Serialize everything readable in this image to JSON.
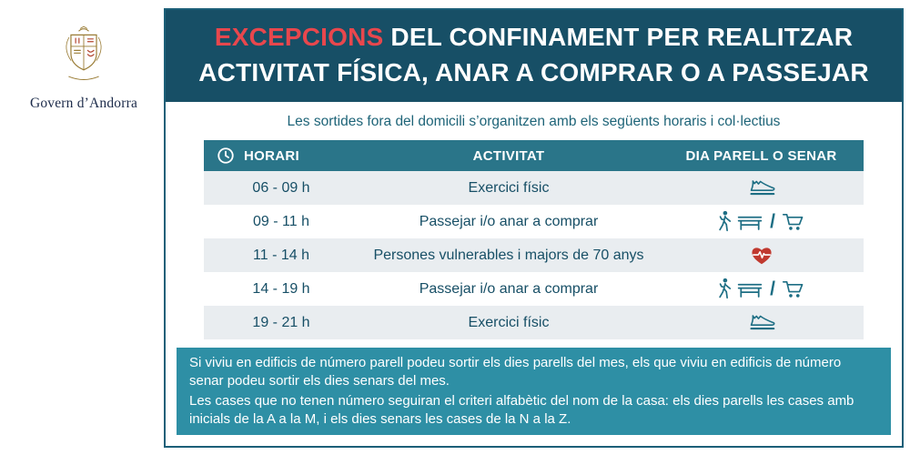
{
  "logo": {
    "org": "Govern d’Andorra"
  },
  "header": {
    "title_accent": "EXCEPCIONS",
    "title_rest": "DEL CONFINAMENT PER REALITZAR",
    "title_line2": "ACTIVITAT FÍSICA, ANAR A COMPRAR O A PASSEJAR"
  },
  "intro": "Les sortides fora del domicili s’organitzen amb els següents horaris i col·lectius",
  "table": {
    "header_time": "HORARI",
    "header_activity": "ACTIVITAT",
    "header_parity": "DIA PARELL O SENAR",
    "rows": [
      {
        "time": "06 - 09 h",
        "activity": "Exercici físic",
        "icons": [
          "sneaker"
        ]
      },
      {
        "time": "09 - 11 h",
        "activity": "Passejar i/o anar a comprar",
        "icons": [
          "walk",
          "bench",
          "slash",
          "cart"
        ]
      },
      {
        "time": "11 - 14 h",
        "activity": "Persones vulnerables i majors de 70 anys",
        "icons": [
          "heart-pulse"
        ]
      },
      {
        "time": "14 - 19 h",
        "activity": "Passejar i/o anar a comprar",
        "icons": [
          "walk",
          "bench",
          "slash",
          "cart"
        ]
      },
      {
        "time": "19 - 21 h",
        "activity": "Exercici físic",
        "icons": [
          "sneaker"
        ]
      }
    ]
  },
  "footer": {
    "line1": "Si viviu en edificis de número parell podeu sortir els dies parells del mes, els que viviu en edificis de número senar podeu sortir els dies senars del mes.",
    "line2": "Les cases que no tenen número seguiran el criteri alfabètic del nom de la casa: els dies parells les cases amb inicials de la A a la M, i els dies senars les cases de la N a la Z."
  },
  "icons": {
    "clock": "clock-icon",
    "sneaker": "sneaker-icon",
    "walk": "walking-person-icon",
    "bench": "bench-icon",
    "cart": "shopping-cart-icon",
    "heart-pulse": "heart-pulse-icon",
    "slash": "slash-separator"
  },
  "colors": {
    "header_bg": "#174f66",
    "accent_red": "#e8474d",
    "table_header_bg": "#2a7589",
    "row_alt_bg": "#e9edf0",
    "footer_bg": "#2e8fa5",
    "text_teal": "#174f66",
    "icon_teal": "#1d6e84",
    "heart_red": "#c0392f",
    "border_teal": "#1c5f78"
  }
}
